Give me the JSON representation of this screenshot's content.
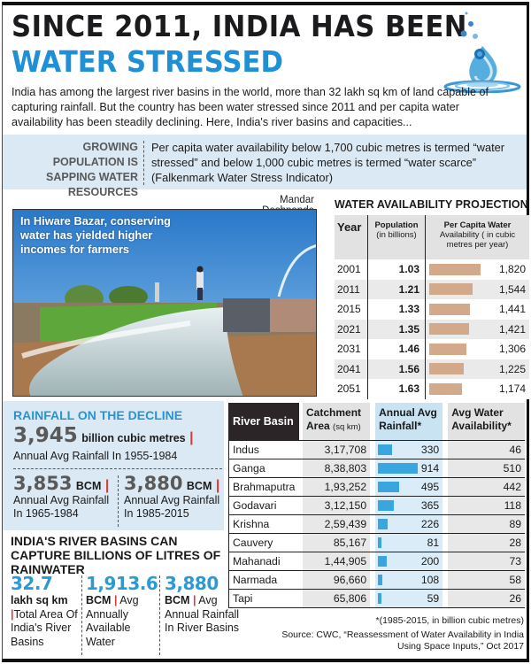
{
  "header": {
    "title_line1": "SINCE 2011, INDIA HAS BEEN",
    "title_line2": "WATER STRESSED",
    "intro": "India has among the largest river basins in the world, more than 32 lakh sq km of land capable of capturing rainfall. But the country has been water stressed since 2011 and per capita water availability has been steadily declining. Here, India's river basins and capacities...",
    "icon": "water-drop-icon"
  },
  "stress_band": {
    "left_heading": "GROWING POPULATION IS SAPPING WATER RESOURCES",
    "definition": "Per capita water availability below 1,700 cubic metres is termed “water stressed” and below 1,000 cubic metres is termed “water scarce” (Falkenmark Water Stress Indicator)"
  },
  "photo": {
    "credit": "Mandar Deshpande",
    "caption": "In Hiware Bazar, conserving water has yielded higher incomes for farmers"
  },
  "projection": {
    "title": "WATER AVAILABILITY PROJECTION",
    "headers": {
      "year": "Year",
      "population": "Population",
      "population_unit": "(in billions)",
      "per_capita": "Per Capita Water",
      "per_capita_unit": "Availability ( in cubic metres per year)"
    },
    "rows": [
      {
        "year": "2001",
        "population": "1.03",
        "availability": "1,820"
      },
      {
        "year": "2011",
        "population": "1.21",
        "availability": "1,544"
      },
      {
        "year": "2015",
        "population": "1.33",
        "availability": "1,441"
      },
      {
        "year": "2021",
        "population": "1.35",
        "availability": "1,421"
      },
      {
        "year": "2031",
        "population": "1.46",
        "availability": "1,306"
      },
      {
        "year": "2041",
        "population": "1.56",
        "availability": "1,225"
      },
      {
        "year": "2051",
        "population": "1.63",
        "availability": "1,174"
      }
    ],
    "bar_color": "#d2a98a"
  },
  "rainfall": {
    "title": "RAINFALL ON THE DECLINE",
    "main_value": "3,945",
    "main_unit": "billion cubic metres",
    "main_label": "Annual Avg Rainfall In 1955-1984",
    "second_value": "3,853",
    "second_unit": "BCM",
    "second_label": "Annual Avg Rainfall In 1965-1984",
    "third_value": "3,880",
    "third_unit": "BCM",
    "third_label": "Annual Avg Rainfall In 1985-2015",
    "pipe": "|"
  },
  "basins_capture": {
    "title": "INDIA'S RIVER BASINS CAN CAPTURE BILLIONS OF LITRES OF RAINWATER",
    "stats": [
      {
        "value": "32.7",
        "unit": "lakh sq km",
        "label": "Total Area Of India's River Basins"
      },
      {
        "value": "1,913.6",
        "unit": "BCM",
        "label": "Avg Annually Available Water"
      },
      {
        "value": "3,880",
        "unit": "BCM",
        "label": "Avg Annual Rainfall In River Basins"
      }
    ]
  },
  "river_table": {
    "headers": {
      "basin": "River Basin",
      "catchment": "Catchment",
      "catchment_unit_a": "Area",
      "catchment_unit_b": "(sq km)",
      "rainfall": "Annual Avg Rainfall*",
      "availability": "Avg Water Availability*"
    },
    "rows": [
      {
        "basin": "Indus",
        "catchment": "3,17,708",
        "rainfall": "330",
        "availability": "46"
      },
      {
        "basin": "Ganga",
        "catchment": "8,38,803",
        "rainfall": "914",
        "availability": "510"
      },
      {
        "basin": "Brahmaputra",
        "catchment": "1,93,252",
        "rainfall": "495",
        "availability": "442"
      },
      {
        "basin": "Godavari",
        "catchment": "3,12,150",
        "rainfall": "365",
        "availability": "118"
      },
      {
        "basin": "Krishna",
        "catchment": "2,59,439",
        "rainfall": "226",
        "availability": "89"
      },
      {
        "basin": "Cauvery",
        "catchment": "85,167",
        "rainfall": "81",
        "availability": "28"
      },
      {
        "basin": "Mahanadi",
        "catchment": "1,44,905",
        "rainfall": "200",
        "availability": "73"
      },
      {
        "basin": "Narmada",
        "catchment": "96,660",
        "rainfall": "108",
        "availability": "58"
      },
      {
        "basin": "Tapi",
        "catchment": "65,806",
        "rainfall": "59",
        "availability": "26"
      }
    ],
    "bar_color": "#3aa6e0"
  },
  "footnote": "*(1985-2015, in billion cubic metres)",
  "source": "Source: CWC, “Reassessment of Water Availability in India Using Space Inputs,” Oct 2017",
  "chart_data": [
    {
      "type": "bar",
      "title": "WATER AVAILABILITY PROJECTION",
      "categories": [
        "2001",
        "2011",
        "2015",
        "2021",
        "2031",
        "2041",
        "2051"
      ],
      "series": [
        {
          "name": "Population (in billions)",
          "values": [
            1.03,
            1.21,
            1.33,
            1.35,
            1.46,
            1.56,
            1.63
          ]
        },
        {
          "name": "Per Capita Water Availability (cubic metres per year)",
          "values": [
            1820,
            1544,
            1441,
            1421,
            1306,
            1225,
            1174
          ]
        }
      ],
      "xlabel": "Year",
      "ylabel": "Per Capita Water Availability (cubic metres per year)",
      "orientation": "horizontal"
    },
    {
      "type": "bar",
      "title": "River Basins",
      "categories": [
        "Indus",
        "Ganga",
        "Brahmaputra",
        "Godavari",
        "Krishna",
        "Cauvery",
        "Mahanadi",
        "Narmada",
        "Tapi"
      ],
      "series": [
        {
          "name": "Catchment Area (sq km)",
          "values": [
            317708,
            838803,
            193252,
            312150,
            259439,
            85167,
            144905,
            96660,
            65806
          ]
        },
        {
          "name": "Annual Avg Rainfall* (BCM)",
          "values": [
            330,
            914,
            495,
            365,
            226,
            81,
            200,
            108,
            59
          ]
        },
        {
          "name": "Avg Water Availability* (BCM)",
          "values": [
            46,
            510,
            442,
            118,
            89,
            28,
            73,
            58,
            26
          ]
        }
      ],
      "xlabel": "River Basin",
      "ylabel": "Annual Avg Rainfall (billion cubic metres, 1985-2015)",
      "orientation": "horizontal"
    }
  ]
}
